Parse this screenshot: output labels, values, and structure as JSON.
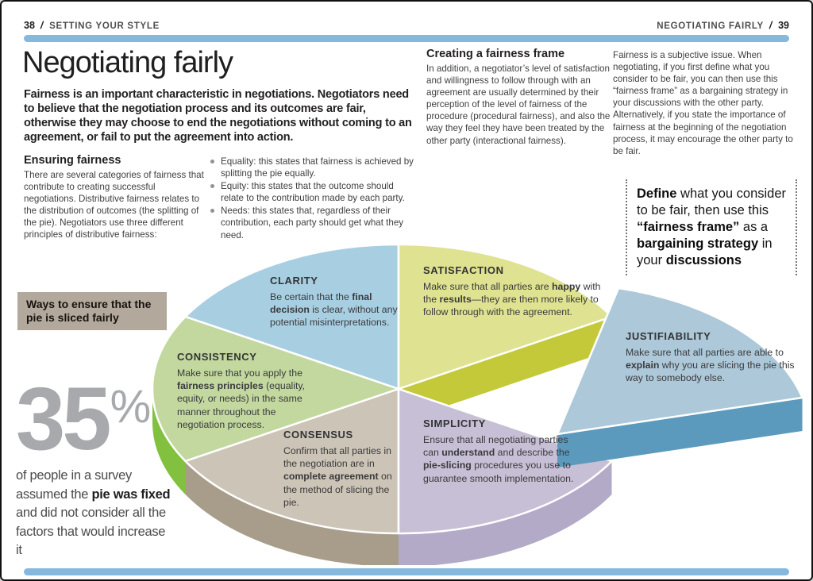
{
  "header": {
    "left": {
      "page": "38",
      "sep": "/",
      "section": "SETTING YOUR STYLE"
    },
    "right": {
      "section": "NEGOTIATING FAIRLY",
      "sep": "/",
      "page": "39"
    }
  },
  "title": "Negotiating fairly",
  "intro": "Fairness is an important characteristic in negotiations. Negotiators need to believe that the negotiation process and its outcomes are fair, otherwise they may choose to end the negotiations without coming to an agreement, or fail to put the agreement into action.",
  "sections": {
    "ensuring": {
      "heading": "Ensuring fairness",
      "body": "There are several categories of fairness that contribute to creating successful negotiations. Distributive fairness relates to the distribution of outcomes (the splitting of the pie). Negotiators use three different principles of distributive fairness:"
    },
    "principles": [
      "Equality: this states that fairness is achieved by splitting the pie equally.",
      "Equity: this states that the outcome should relate to the contribution made by each party.",
      "Needs: this states that, regardless of their contribution, each party should get what they need."
    ],
    "frame": {
      "heading": "Creating a fairness frame",
      "body": "In addition, a negotiator’s level of satisfaction and willingness to follow through with an agreement are usually determined by their perception of the level of fairness of the procedure (procedural fairness), and also the way they feel they have been treated by the other party (interactional fairness)."
    },
    "subjective": "Fairness is a subjective issue. When negotiating, if you first define what you consider to be fair, you can then use this “fairness frame” as a bargaining strategy in your discussions with the other party. Alternatively, if you state the importance of fairness at the beginning of the negotiation process, it may encourage the other party to be fair."
  },
  "pull_quote": {
    "runs": [
      {
        "t": "Define",
        "b": true
      },
      {
        "t": " what you consider to be fair, then use this "
      },
      {
        "t": "“fairness frame”",
        "b": true
      },
      {
        "t": " as a "
      },
      {
        "t": "bargaining strategy",
        "b": true
      },
      {
        "t": " in your "
      },
      {
        "t": "discussions",
        "b": true
      }
    ]
  },
  "ways_callout": "Ways to ensure that the pie is sliced fairly",
  "stat": {
    "value": "35",
    "unit": "%",
    "caption_runs": [
      {
        "t": "of people in a survey assumed the "
      },
      {
        "t": "pie was fixed",
        "b": true
      },
      {
        "t": " and did not consider all the factors that would increase it"
      }
    ]
  },
  "pie": {
    "type": "pie",
    "slices_equal": true,
    "note": "3D pie, six equal slices, JUSTIFIABILITY slice exploded to the right",
    "segments": [
      {
        "label": "CLARITY",
        "color": "#a8cee2",
        "side_color": "#a8cee2",
        "desc": [
          {
            "t": "Be certain that the "
          },
          {
            "t": "final decision",
            "b": true
          },
          {
            "t": " is clear, without any potential misinterpretations."
          }
        ]
      },
      {
        "label": "SATISFACTION",
        "color": "#dfe291",
        "side_color": "#c3c939",
        "desc": [
          {
            "t": "Make sure that all parties are "
          },
          {
            "t": "happy",
            "b": true
          },
          {
            "t": " with the "
          },
          {
            "t": "results",
            "b": true
          },
          {
            "t": "—they are then more likely to follow through with the agreement."
          }
        ]
      },
      {
        "label": "JUSTIFIABILITY",
        "color": "#adc8d9",
        "side_color": "#5b9abc",
        "desc": [
          {
            "t": "Make sure that all parties are able to "
          },
          {
            "t": "explain",
            "b": true
          },
          {
            "t": " why you are slicing the pie this way to somebody else."
          }
        ]
      },
      {
        "label": "SIMPLICITY",
        "color": "#c7bfd5",
        "side_color": "#b3aac8",
        "desc": [
          {
            "t": "Ensure that all negotiating parties can "
          },
          {
            "t": "understand",
            "b": true
          },
          {
            "t": " and describe the "
          },
          {
            "t": "pie-slicing",
            "b": true
          },
          {
            "t": " procedures you use to guarantee smooth implementation."
          }
        ]
      },
      {
        "label": "CONSENSUS",
        "color": "#ccc4b6",
        "side_color": "#a79d8a",
        "desc": [
          {
            "t": "Confirm that all parties in the negotiation are in "
          },
          {
            "t": "complete agreement",
            "b": true
          },
          {
            "t": " on the method of slicing the pie."
          }
        ]
      },
      {
        "label": "CONSISTENCY",
        "color": "#c3d89f",
        "side_color": "#82c13f",
        "desc": [
          {
            "t": "Make sure that you apply the "
          },
          {
            "t": "fairness principles",
            "b": true
          },
          {
            "t": " (equality, equity, or needs) in the same manner throughout the negotiation process."
          }
        ]
      }
    ]
  },
  "colors": {
    "bar": "#85b8dd",
    "ways_bg": "#b2a89c",
    "stat_gray": "#a7a9ac"
  }
}
